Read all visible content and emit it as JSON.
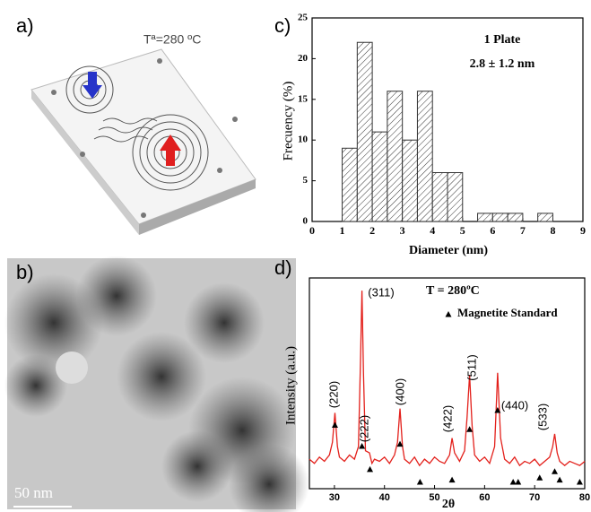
{
  "panels": {
    "a": {
      "label": "a)",
      "temperature": "Tª=280 ºC"
    },
    "b": {
      "label": "b)",
      "scale": "50 nm"
    },
    "c": {
      "label": "c)"
    },
    "d": {
      "label": "d)"
    }
  },
  "chart_data": [
    {
      "type": "histogram",
      "xlabel": "Diameter (nm)",
      "ylabel": "Frecuency (%)",
      "annotations": [
        "1 Plate",
        "2.8 ± 1.2 nm"
      ],
      "bins": [
        1,
        1.5,
        2,
        2.5,
        3,
        3.5,
        4,
        4.5,
        5,
        5.5,
        6,
        6.5,
        7,
        7.5,
        8
      ],
      "values": [
        9,
        22,
        11,
        16,
        10,
        16,
        6,
        6,
        0,
        1,
        1,
        1,
        0,
        1
      ],
      "color": "#333333",
      "xlim": [
        0,
        9
      ],
      "xticks": [
        0,
        1,
        2,
        3,
        4,
        5,
        6,
        7,
        8,
        9
      ],
      "ylim": [
        0,
        25
      ],
      "yticks": [
        0,
        5,
        10,
        15,
        20,
        25
      ]
    },
    {
      "type": "line",
      "xlabel": "2θ",
      "ylabel": "Intensity (a.u.)",
      "annotations": [
        "T = 280ºC"
      ],
      "peak_labels": [
        "(220)",
        "(311)",
        "(222)",
        "(400)",
        "(422)",
        "(511)",
        "(440)",
        "(533)"
      ],
      "xlim": [
        25,
        80
      ],
      "xticks": [
        30,
        40,
        50,
        60,
        70,
        80
      ],
      "ylim": [
        0,
        100
      ],
      "series": [
        {
          "color": "#e3201b",
          "style": "line",
          "x": [
            25,
            26,
            27,
            28,
            29,
            29.6,
            30.1,
            30.6,
            31,
            32,
            33,
            34,
            34.8,
            35.2,
            35.5,
            35.8,
            36.2,
            37,
            37.5,
            38,
            39,
            40,
            41,
            42,
            42.6,
            43.1,
            43.6,
            44,
            45,
            46,
            47,
            48,
            49,
            50,
            51,
            52,
            53,
            53.5,
            54,
            55,
            56,
            56.5,
            57,
            57.5,
            58,
            59,
            60,
            61,
            62,
            62.6,
            63.2,
            64,
            65,
            66,
            67,
            68,
            69,
            70,
            71,
            72,
            73,
            73.6,
            74,
            74.5,
            75,
            76,
            77,
            78,
            79,
            80
          ],
          "values": [
            14,
            12,
            15,
            13,
            16,
            22,
            36,
            20,
            15,
            13,
            16,
            14,
            20,
            60,
            94,
            55,
            18,
            17,
            12,
            14,
            13,
            15,
            12,
            16,
            22,
            38,
            20,
            14,
            12,
            15,
            11,
            14,
            12,
            15,
            13,
            12,
            16,
            24,
            17,
            13,
            18,
            34,
            54,
            30,
            16,
            13,
            15,
            12,
            20,
            55,
            24,
            14,
            12,
            15,
            11,
            13,
            12,
            14,
            11,
            13,
            15,
            20,
            26,
            17,
            13,
            11,
            13,
            12,
            11,
            13
          ]
        },
        {
          "name": "Magnetite Standard",
          "color": "#000000",
          "style": "scatter",
          "x": [
            30.1,
            35.5,
            37.1,
            43.1,
            47.1,
            53.5,
            57,
            62.6,
            65.7,
            66.7,
            71,
            74,
            75,
            79
          ],
          "values": [
            30,
            20,
            9,
            21,
            3,
            4,
            28,
            37,
            3,
            3,
            5,
            8,
            4,
            3
          ]
        }
      ]
    }
  ]
}
